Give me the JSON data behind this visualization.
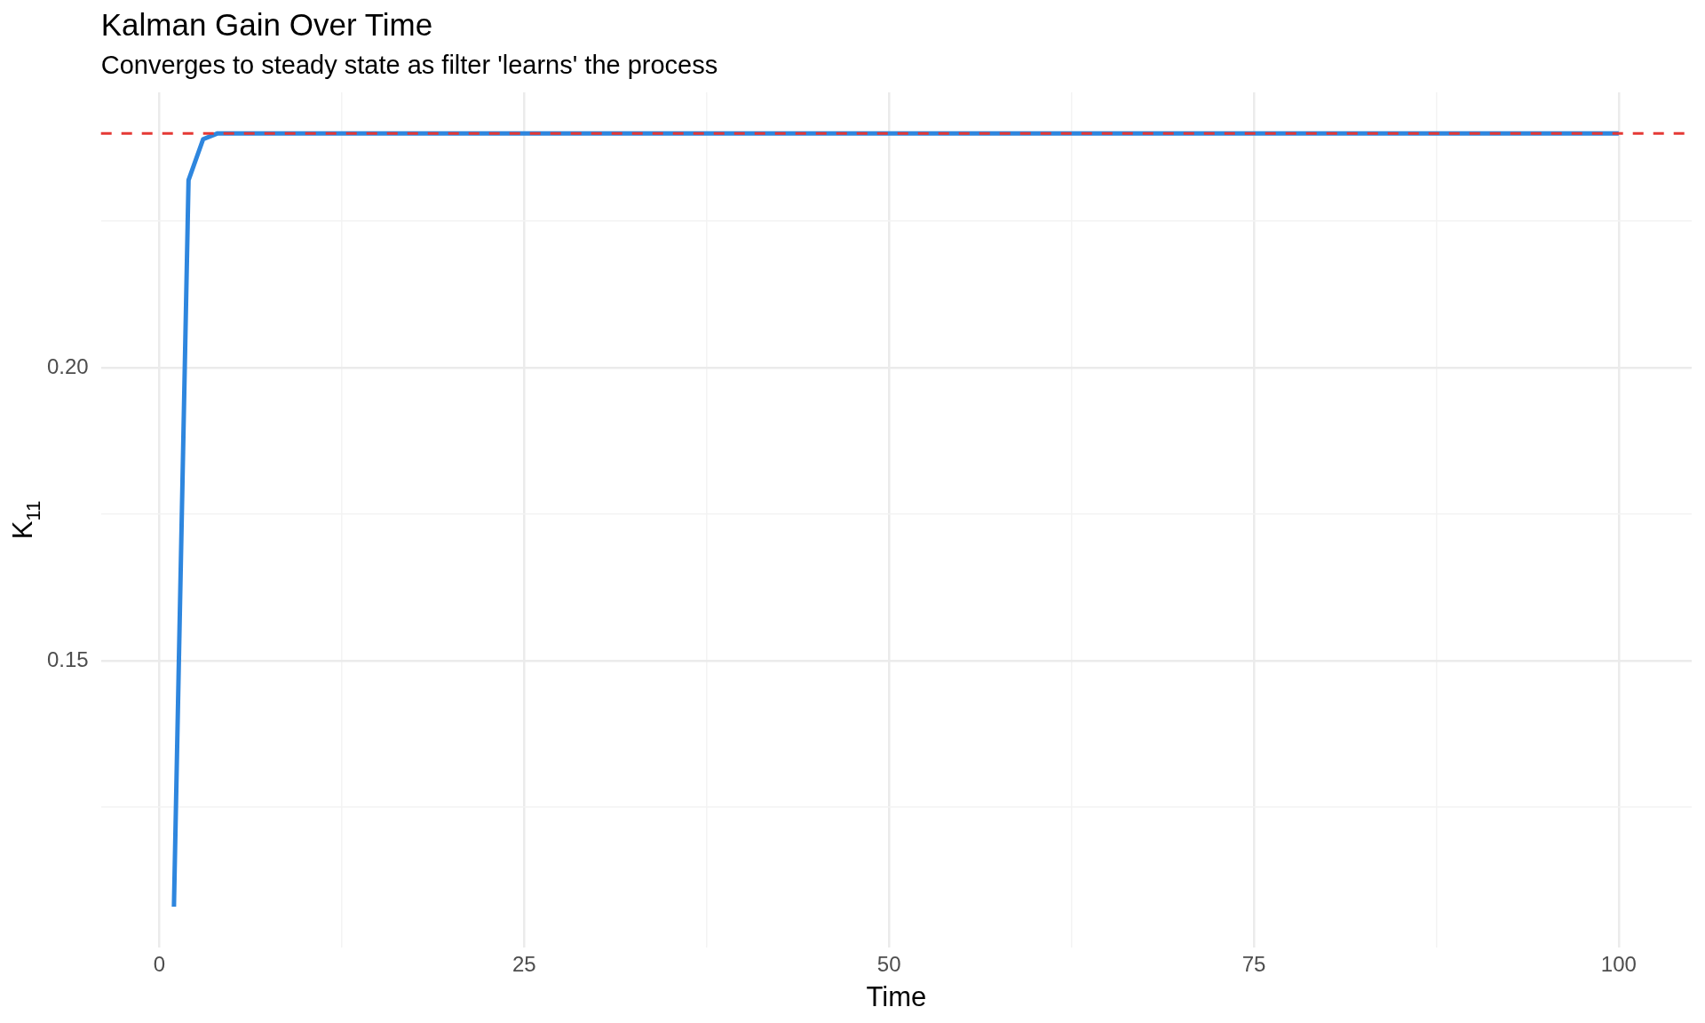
{
  "chart_data": {
    "type": "line",
    "title": "Kalman Gain Over Time",
    "subtitle": "Converges to steady state as filter 'learns' the process",
    "xlabel": "Time",
    "ylabel": "K$_{11}$",
    "x": [
      1,
      2,
      3,
      4,
      5,
      100
    ],
    "series": [
      {
        "color": "#2e86de",
        "values": [
          0.108,
          0.232,
          0.239,
          0.24,
          0.24,
          0.24
        ]
      }
    ],
    "xlim": [
      -4,
      105
    ],
    "xticks": [
      0,
      {
        "value": 12.5,
        "label": null
      },
      25,
      {
        "value": 37.5,
        "label": null
      },
      50,
      {
        "value": 62.5,
        "label": null
      },
      75,
      {
        "value": 87.5,
        "label": null
      },
      100
    ],
    "ylim": [
      0.101,
      0.247
    ],
    "yticks": [
      {
        "value": 0.125,
        "label": null
      },
      0.15,
      {
        "value": 0.175,
        "label": null
      },
      {
        "value": 0.2,
        "label": "0.20"
      },
      {
        "value": 0.225,
        "label": null
      }
    ],
    "grid": true,
    "legend": false,
    "marker": "none",
    "line_style": "solid",
    "ref_lines": [
      {
        "axis": "y",
        "value": 0.24,
        "color": "#e53935",
        "line_style": "dashed"
      }
    ]
  }
}
